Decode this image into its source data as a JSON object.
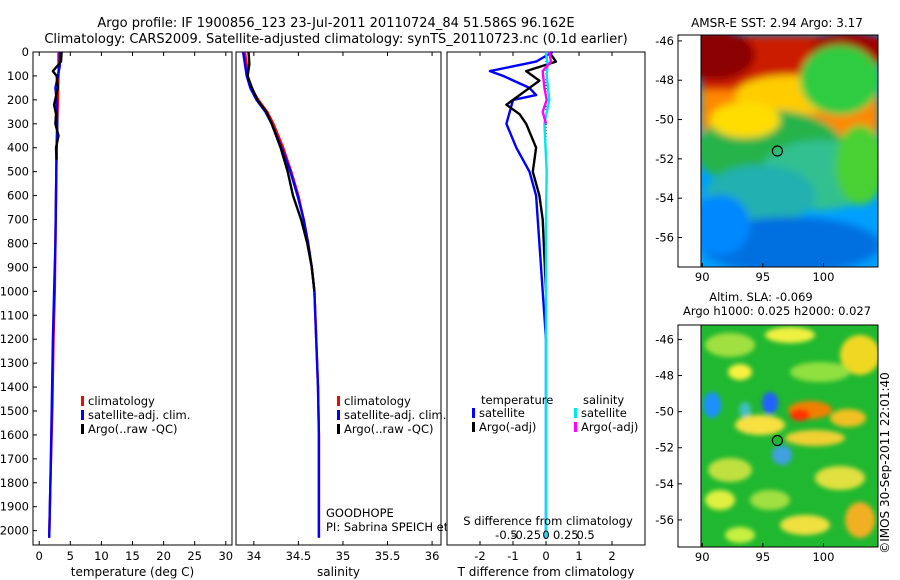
{
  "header": {
    "title_line1": "Argo profile: IF 1900856_123 23-Jul-2011 20110724_84 51.586S 96.162E",
    "title_line2": "Climatology: CARS2009. Satellite-adjusted climatology: synTS_20110723.nc (0.1d earlier)"
  },
  "colors": {
    "climatology": "#ff0000",
    "satellite_adj": "#0000ff",
    "argo": "#000000",
    "salinity_satellite": "#00e5ee",
    "salinity_argo": "#ff00ff"
  },
  "chart_data": [
    {
      "type": "line",
      "name": "temperature-profile",
      "xlabel": "temperature (deg C)",
      "ylabel": "",
      "xlim": [
        -1,
        31
      ],
      "ylim": [
        0,
        2060
      ],
      "y_reversed": true,
      "xticks": [
        0,
        5,
        10,
        15,
        20,
        25,
        30
      ],
      "yticks": [
        0,
        100,
        200,
        300,
        400,
        500,
        600,
        700,
        800,
        900,
        1000,
        1100,
        1200,
        1300,
        1400,
        1500,
        1600,
        1700,
        1800,
        1900,
        2000
      ],
      "legend": [
        "climatology",
        "satellite-adj. clim.",
        "Argo(..raw -QC)"
      ],
      "series": [
        {
          "name": "climatology",
          "color": "#ff0000",
          "points": [
            [
              3.1,
              0
            ],
            [
              3.1,
              100
            ],
            [
              3.0,
              200
            ],
            [
              2.9,
              300
            ],
            [
              2.8,
              400
            ],
            [
              2.7,
              600
            ],
            [
              2.6,
              800
            ],
            [
              2.5,
              1000
            ],
            [
              2.3,
              1200
            ],
            [
              2.1,
              1500
            ],
            [
              1.8,
              1800
            ],
            [
              1.6,
              2030
            ]
          ]
        },
        {
          "name": "satellite-adj. clim.",
          "color": "#0000ff",
          "points": [
            [
              3.3,
              0
            ],
            [
              3.3,
              60
            ],
            [
              3.0,
              100
            ],
            [
              2.6,
              150
            ],
            [
              2.8,
              200
            ],
            [
              2.9,
              300
            ],
            [
              2.8,
              400
            ],
            [
              2.7,
              600
            ],
            [
              2.6,
              800
            ],
            [
              2.4,
              1000
            ],
            [
              2.2,
              1200
            ],
            [
              2.0,
              1500
            ],
            [
              1.8,
              1800
            ],
            [
              1.6,
              2030
            ]
          ]
        },
        {
          "name": "Argo(..raw -QC)",
          "color": "#000000",
          "points": [
            [
              3.6,
              0
            ],
            [
              3.5,
              40
            ],
            [
              2.2,
              80
            ],
            [
              2.8,
              100
            ],
            [
              3.0,
              150
            ],
            [
              2.4,
              220
            ],
            [
              2.7,
              260
            ],
            [
              2.6,
              300
            ],
            [
              3.1,
              350
            ],
            [
              2.7,
              400
            ],
            [
              2.8,
              450
            ]
          ]
        }
      ]
    },
    {
      "type": "line",
      "name": "salinity-profile",
      "xlabel": "salinity",
      "xlim": [
        33.8,
        36.1
      ],
      "ylim": [
        0,
        2060
      ],
      "y_reversed": true,
      "xticks": [
        34,
        34.5,
        35,
        35.5,
        36
      ],
      "xticklabels": [
        "34",
        "34.5",
        "35",
        "35.5",
        "36"
      ],
      "legend": [
        "climatology",
        "satellite-adj. clim.",
        "Argo(..raw -QC)"
      ],
      "series": [
        {
          "name": "climatology",
          "color": "#ff0000",
          "points": [
            [
              33.9,
              0
            ],
            [
              33.92,
              50
            ],
            [
              33.93,
              100
            ],
            [
              33.97,
              150
            ],
            [
              34.05,
              200
            ],
            [
              34.15,
              250
            ],
            [
              34.22,
              300
            ],
            [
              34.33,
              400
            ],
            [
              34.42,
              500
            ],
            [
              34.5,
              600
            ],
            [
              34.56,
              700
            ],
            [
              34.61,
              800
            ],
            [
              34.65,
              900
            ],
            [
              34.68,
              1000
            ],
            [
              34.7,
              1200
            ],
            [
              34.72,
              1400
            ],
            [
              34.73,
              1600
            ],
            [
              34.73,
              2030
            ]
          ]
        },
        {
          "name": "satellite-adj. clim.",
          "color": "#0000ff",
          "points": [
            [
              33.88,
              0
            ],
            [
              33.9,
              50
            ],
            [
              33.92,
              100
            ],
            [
              33.96,
              150
            ],
            [
              34.03,
              200
            ],
            [
              34.13,
              250
            ],
            [
              34.2,
              300
            ],
            [
              34.31,
              400
            ],
            [
              34.41,
              500
            ],
            [
              34.49,
              600
            ],
            [
              34.56,
              700
            ],
            [
              34.61,
              800
            ],
            [
              34.65,
              900
            ],
            [
              34.68,
              1000
            ],
            [
              34.7,
              1200
            ],
            [
              34.72,
              1400
            ],
            [
              34.73,
              1600
            ],
            [
              34.73,
              2030
            ]
          ]
        },
        {
          "name": "Argo(..raw -QC)",
          "color": "#000000",
          "points": [
            [
              33.94,
              0
            ],
            [
              33.95,
              50
            ],
            [
              33.93,
              100
            ],
            [
              33.98,
              150
            ],
            [
              34.04,
              200
            ],
            [
              34.14,
              250
            ],
            [
              34.2,
              300
            ],
            [
              34.3,
              400
            ],
            [
              34.38,
              500
            ],
            [
              34.44,
              600
            ],
            [
              34.53,
              700
            ],
            [
              34.6,
              800
            ],
            [
              34.65,
              900
            ],
            [
              34.68,
              1000
            ]
          ]
        }
      ],
      "annotations": [
        "GOODHOPE",
        "PI: Sabrina SPEICH et Michel ARHAN"
      ]
    },
    {
      "type": "line",
      "name": "difference-profile",
      "xlabel": "T difference from climatology",
      "top_xlabel": "S difference from climatology",
      "xlim": [
        -3,
        3
      ],
      "ylim": [
        0,
        2060
      ],
      "y_reversed": true,
      "xticks": [
        -2,
        -1,
        0,
        1,
        2
      ],
      "top_ticks": [
        -0.5,
        -0.25,
        0,
        0.25,
        0.5
      ],
      "top_ticklabels": [
        "-0.5",
        "-0.25",
        "0",
        "0.25",
        "0.5"
      ],
      "legend_headers": [
        "temperature",
        "salinity"
      ],
      "legend": [
        "satellite",
        "Argo(-adj)",
        "satellite",
        "Argo(-adj)"
      ],
      "series": [
        {
          "name": "temperature satellite",
          "color": "#0000ff",
          "points": [
            [
              0.2,
              0
            ],
            [
              -0.3,
              40
            ],
            [
              -1.7,
              80
            ],
            [
              -1.3,
              100
            ],
            [
              -0.5,
              150
            ],
            [
              -0.3,
              180
            ],
            [
              -1.0,
              200
            ],
            [
              -1.2,
              300
            ],
            [
              -0.9,
              400
            ],
            [
              -0.5,
              500
            ],
            [
              -0.3,
              600
            ],
            [
              -0.2,
              800
            ],
            [
              -0.1,
              1000
            ],
            [
              0,
              1200
            ],
            [
              0,
              2030
            ]
          ]
        },
        {
          "name": "temperature Argo(-adj)",
          "color": "#000000",
          "points": [
            [
              0.1,
              0
            ],
            [
              0.3,
              40
            ],
            [
              -0.6,
              80
            ],
            [
              -0.2,
              120
            ],
            [
              -1.2,
              220
            ],
            [
              -0.8,
              260
            ],
            [
              -0.6,
              300
            ],
            [
              -0.3,
              400
            ],
            [
              -0.4,
              500
            ],
            [
              -0.2,
              600
            ],
            [
              -0.1,
              700
            ],
            [
              0,
              1000
            ]
          ]
        },
        {
          "name": "salinity satellite",
          "color": "#00e5ee",
          "points": [
            [
              0,
              0
            ],
            [
              0.05,
              50
            ],
            [
              0.02,
              100
            ],
            [
              0.1,
              200
            ],
            [
              -0.05,
              300
            ],
            [
              0.02,
              500
            ],
            [
              0,
              700
            ],
            [
              0,
              2030
            ]
          ]
        },
        {
          "name": "salinity Argo(-adj)",
          "color": "#ff00ff",
          "points": [
            [
              0.1,
              0
            ],
            [
              0.15,
              40
            ],
            [
              -0.1,
              80
            ],
            [
              -0.05,
              150
            ],
            [
              0.02,
              200
            ],
            [
              -0.1,
              250
            ],
            [
              0,
              300
            ]
          ]
        }
      ]
    },
    {
      "type": "heatmap",
      "name": "sst-map",
      "title": "AMSR-E SST: 2.94 Argo: 3.17",
      "xlim": [
        88,
        104.5
      ],
      "ylim": [
        -57.5,
        -45.7
      ],
      "xticks": [
        90,
        95,
        100
      ],
      "yticks": [
        -46,
        -48,
        -50,
        -52,
        -54,
        -56
      ],
      "marker": {
        "lon": 96.2,
        "lat": -51.6
      }
    },
    {
      "type": "heatmap",
      "name": "sla-map",
      "title_line1": "Altim. SLA: -0.069",
      "title_line2": "Argo h1000: 0.025 h2000: 0.027",
      "xlim": [
        88,
        104.5
      ],
      "ylim": [
        -57.5,
        -45.2
      ],
      "xticks": [
        90,
        95,
        100
      ],
      "yticks": [
        -46,
        -48,
        -50,
        -52,
        -54,
        -56
      ],
      "marker": {
        "lon": 96.2,
        "lat": -51.6
      }
    }
  ],
  "footer": {
    "credit": "©IMOS 30-Sep-2011 22:01:40"
  }
}
